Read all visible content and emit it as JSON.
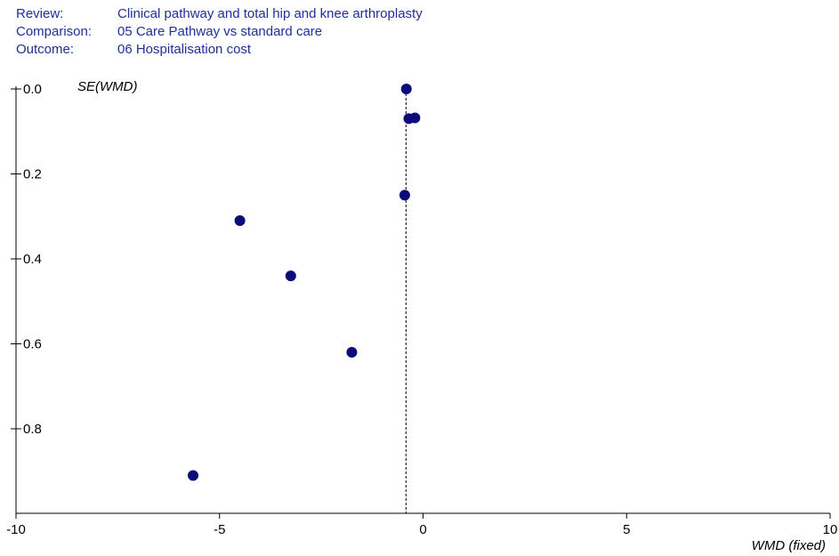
{
  "header": {
    "review_key": "Review:",
    "review_value": "Clinical pathway and total hip and knee arthroplasty",
    "comparison_key": "Comparison:",
    "comparison_value": "05 Care Pathway vs standard care",
    "outcome_key": "Outcome:",
    "outcome_value": "06 Hospitalisation cost"
  },
  "chart_data": {
    "type": "scatter",
    "x_label": "WMD (fixed)",
    "y_label": "SE(WMD)",
    "xlim": [
      -10,
      10
    ],
    "ylim": [
      0.0,
      1.0
    ],
    "y_reversed": true,
    "x_ticks": [
      "-10",
      "-5",
      "0",
      "5",
      "10"
    ],
    "x_tick_values": [
      -10,
      -5,
      0,
      5,
      10
    ],
    "y_ticks": [
      "0.0",
      "0.2",
      "0.4",
      "0.6",
      "0.8"
    ],
    "y_tick_values": [
      0.0,
      0.2,
      0.4,
      0.6,
      0.8
    ],
    "pooled_estimate_line_x": -0.42,
    "point_color": "#0b0b7a",
    "points": [
      {
        "x": -0.41,
        "y": 0.0
      },
      {
        "x": -0.35,
        "y": 0.07
      },
      {
        "x": -0.2,
        "y": 0.068
      },
      {
        "x": -0.45,
        "y": 0.25
      },
      {
        "x": -4.5,
        "y": 0.31
      },
      {
        "x": -3.25,
        "y": 0.44
      },
      {
        "x": -1.75,
        "y": 0.62
      },
      {
        "x": -5.65,
        "y": 0.91
      }
    ]
  }
}
